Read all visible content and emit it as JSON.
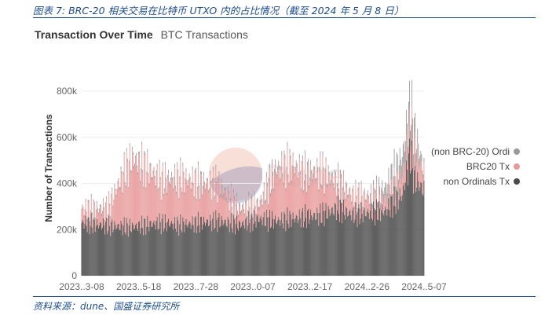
{
  "caption": "图表 7:  BRC-20 相关交易在比特币 UTXO 内的占比情况（截至 2024 年 5 月 8 日）",
  "source": "资料来源：dune、国盛证券研究所",
  "chart_title": "Transaction Over Time",
  "chart_subtitle": "BTC Transactions",
  "watermark": "Dune",
  "chart_data": {
    "type": "bar",
    "stacked": true,
    "ylabel": "Number of Transactions",
    "ylim": [
      0,
      950000
    ],
    "yticks": [
      0,
      200000,
      400000,
      600000,
      800000
    ],
    "ytick_labels": [
      "0",
      "200k",
      "400k",
      "600k",
      "800k"
    ],
    "xlim": [
      "2023-03-08",
      "2024-05-07"
    ],
    "xtick_labels": [
      "2023..3-08",
      "2023..5-18",
      "2023..7-28",
      "2023..0-07",
      "2023..2-17",
      "2024..2-26",
      "2024..5-07"
    ],
    "legend_position": "right",
    "series": [
      {
        "name": "(non BRC-20) Ordi",
        "color": "#9a9a9a",
        "values": [
          {
            "date": "2023-03-08",
            "v": 10000
          },
          {
            "date": "2023-05-01",
            "v": 12000
          },
          {
            "date": "2023-07-01",
            "v": 15000
          },
          {
            "date": "2023-09-01",
            "v": 12000
          },
          {
            "date": "2023-11-01",
            "v": 20000
          },
          {
            "date": "2024-01-01",
            "v": 18000
          },
          {
            "date": "2024-03-01",
            "v": 15000
          },
          {
            "date": "2024-04-20",
            "v": 120000
          },
          {
            "date": "2024-05-07",
            "v": 20000
          }
        ]
      },
      {
        "name": "BRC20 Tx",
        "color": "#e89a9a",
        "values": [
          {
            "date": "2023-03-08",
            "v": 60000
          },
          {
            "date": "2023-04-10",
            "v": 80000
          },
          {
            "date": "2023-04-25",
            "v": 220000
          },
          {
            "date": "2023-05-10",
            "v": 330000
          },
          {
            "date": "2023-05-25",
            "v": 280000
          },
          {
            "date": "2023-06-15",
            "v": 200000
          },
          {
            "date": "2023-07-10",
            "v": 220000
          },
          {
            "date": "2023-08-01",
            "v": 190000
          },
          {
            "date": "2023-08-25",
            "v": 170000
          },
          {
            "date": "2023-09-20",
            "v": 70000
          },
          {
            "date": "2023-10-15",
            "v": 60000
          },
          {
            "date": "2023-11-05",
            "v": 240000
          },
          {
            "date": "2023-11-25",
            "v": 250000
          },
          {
            "date": "2023-12-10",
            "v": 200000
          },
          {
            "date": "2023-12-31",
            "v": 200000
          },
          {
            "date": "2024-01-20",
            "v": 120000
          },
          {
            "date": "2024-02-10",
            "v": 80000
          },
          {
            "date": "2024-02-26",
            "v": 70000
          },
          {
            "date": "2024-03-20",
            "v": 60000
          },
          {
            "date": "2024-04-10",
            "v": 90000
          },
          {
            "date": "2024-04-25",
            "v": 150000
          },
          {
            "date": "2024-05-07",
            "v": 80000
          }
        ]
      },
      {
        "name": "non Ordinals Tx",
        "color": "#4a4a4a",
        "values": [
          {
            "date": "2023-03-08",
            "v": 260000
          },
          {
            "date": "2023-04-10",
            "v": 245000
          },
          {
            "date": "2023-05-10",
            "v": 240000
          },
          {
            "date": "2023-06-15",
            "v": 260000
          },
          {
            "date": "2023-07-10",
            "v": 250000
          },
          {
            "date": "2023-08-01",
            "v": 260000
          },
          {
            "date": "2023-08-25",
            "v": 270000
          },
          {
            "date": "2023-09-20",
            "v": 250000
          },
          {
            "date": "2023-10-15",
            "v": 280000
          },
          {
            "date": "2023-11-05",
            "v": 270000
          },
          {
            "date": "2023-12-10",
            "v": 290000
          },
          {
            "date": "2023-12-31",
            "v": 300000
          },
          {
            "date": "2024-01-20",
            "v": 330000
          },
          {
            "date": "2024-02-10",
            "v": 300000
          },
          {
            "date": "2024-02-26",
            "v": 310000
          },
          {
            "date": "2024-03-20",
            "v": 320000
          },
          {
            "date": "2024-04-10",
            "v": 400000
          },
          {
            "date": "2024-04-20",
            "v": 600000
          },
          {
            "date": "2024-04-25",
            "v": 480000
          },
          {
            "date": "2024-05-07",
            "v": 420000
          }
        ]
      }
    ]
  }
}
